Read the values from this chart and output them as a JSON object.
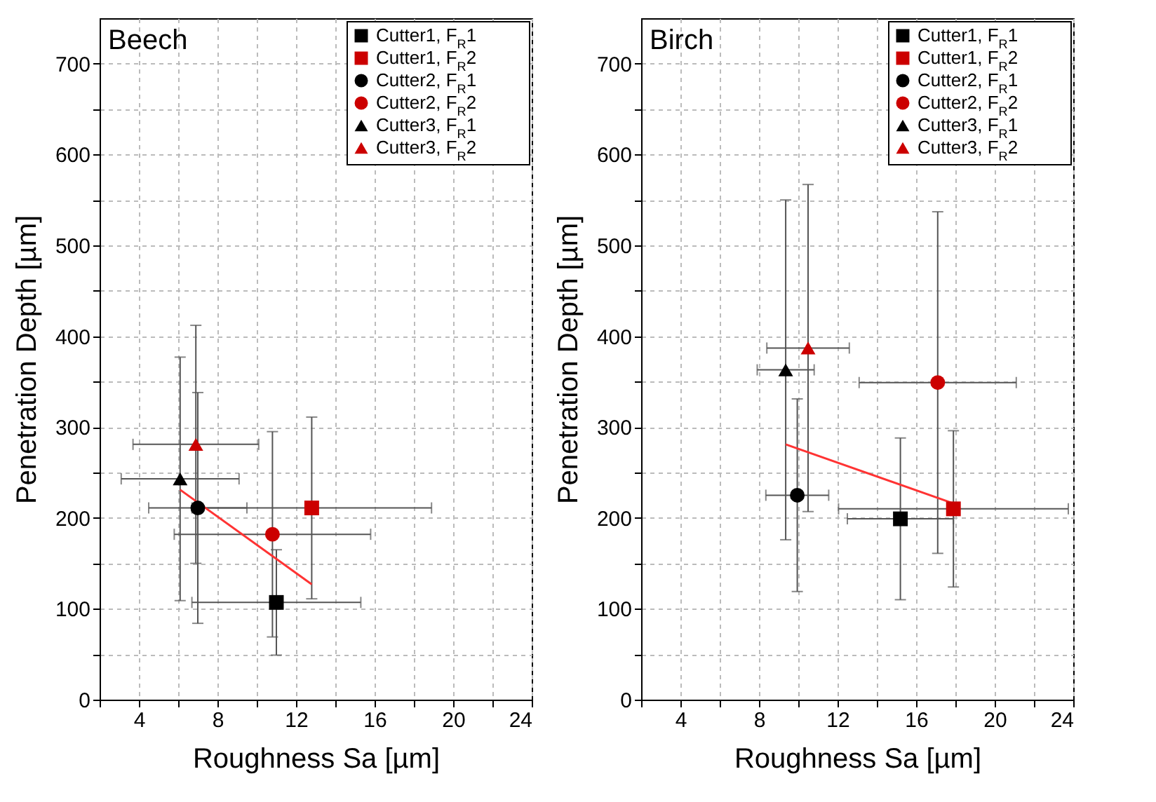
{
  "chart_data": [
    {
      "type": "scatter",
      "title": "Beech",
      "xlabel": "Roughness Sa [µm]",
      "ylabel": "Penetration Depth [µm]",
      "xlim": [
        2,
        24
      ],
      "ylim": [
        0,
        750
      ],
      "xticks": [
        {
          "value": 2,
          "label": null
        },
        4,
        {
          "value": 6,
          "label": null
        },
        8,
        {
          "value": 10,
          "label": null
        },
        12,
        {
          "value": 14,
          "label": null
        },
        16,
        {
          "value": 18,
          "label": null
        },
        20,
        {
          "value": 22,
          "label": null
        },
        24
      ],
      "yticks": [
        0,
        {
          "value": 50,
          "label": null
        },
        100,
        {
          "value": 150,
          "label": null
        },
        200,
        {
          "value": 250,
          "label": null
        },
        300,
        {
          "value": 350,
          "label": null
        },
        400,
        {
          "value": 450,
          "label": null
        },
        500,
        {
          "value": 550,
          "label": null
        },
        600,
        {
          "value": 650,
          "label": null
        },
        700
      ],
      "grid": true,
      "legend": "top right",
      "series": [
        {
          "name": "Cutter1, F$_{R}$1",
          "color": "#000000",
          "marker": "square",
          "x": [
            11.0
          ],
          "values": [
            107
          ],
          "errors": [
            58
          ],
          "xerrors": [
            4.3
          ]
        },
        {
          "name": "Cutter1, F$_{R}$2",
          "color": "#cc0000",
          "marker": "square",
          "x": [
            12.8
          ],
          "values": [
            211
          ],
          "errors": [
            100
          ],
          "xerrors": [
            6.1
          ]
        },
        {
          "name": "Cutter2, F$_{R}$1",
          "color": "#000000",
          "marker": "circle",
          "x": [
            7.0
          ],
          "values": [
            211
          ],
          "errors": [
            127
          ],
          "xerrors": [
            2.5
          ]
        },
        {
          "name": "Cutter2, F$_{R}$2",
          "color": "#cc0000",
          "marker": "circle",
          "x": [
            10.8
          ],
          "values": [
            182
          ],
          "errors": [
            113
          ],
          "xerrors": [
            5.0
          ]
        },
        {
          "name": "Cutter3, F$_{R}$1",
          "color": "#000000",
          "marker": "triangle",
          "x": [
            6.1
          ],
          "values": [
            243
          ],
          "errors": [
            134
          ],
          "xerrors": [
            3.0
          ]
        },
        {
          "name": "Cutter3, F$_{R}$2",
          "color": "#cc0000",
          "marker": "triangle",
          "x": [
            6.9
          ],
          "values": [
            281
          ],
          "errors": [
            131
          ],
          "xerrors": [
            3.2
          ]
        },
        {
          "type": "line",
          "color": "#ff3333",
          "x": [
            6.1,
            12.8
          ],
          "values": [
            231,
            127
          ]
        }
      ]
    },
    {
      "type": "scatter",
      "title": "Birch",
      "xlabel": "Roughness Sa [µm]",
      "ylabel": "Penetration Depth [µm]",
      "xlim": [
        2,
        24
      ],
      "ylim": [
        0,
        750
      ],
      "xticks": [
        {
          "value": 2,
          "label": null
        },
        4,
        {
          "value": 6,
          "label": null
        },
        8,
        {
          "value": 10,
          "label": null
        },
        12,
        {
          "value": 14,
          "label": null
        },
        16,
        {
          "value": 18,
          "label": null
        },
        20,
        {
          "value": 22,
          "label": null
        },
        24
      ],
      "yticks": [
        0,
        {
          "value": 50,
          "label": null
        },
        100,
        {
          "value": 150,
          "label": null
        },
        200,
        {
          "value": 250,
          "label": null
        },
        300,
        {
          "value": 350,
          "label": null
        },
        400,
        {
          "value": 450,
          "label": null
        },
        500,
        {
          "value": 550,
          "label": null
        },
        600,
        {
          "value": 650,
          "label": null
        },
        700
      ],
      "grid": true,
      "legend": "top right",
      "series": [
        {
          "name": "Cutter1, F$_{R}$1",
          "color": "#000000",
          "marker": "square",
          "x": [
            15.2
          ],
          "values": [
            199
          ],
          "errors": [
            89
          ],
          "xerrors": [
            2.7
          ]
        },
        {
          "name": "Cutter1, F$_{R}$2",
          "color": "#cc0000",
          "marker": "square",
          "x": [
            17.9
          ],
          "values": [
            210
          ],
          "errors": [
            86
          ],
          "xerrors": [
            5.85
          ]
        },
        {
          "name": "Cutter2, F$_{R}$1",
          "color": "#000000",
          "marker": "circle",
          "x": [
            9.95
          ],
          "values": [
            225
          ],
          "errors": [
            106
          ],
          "xerrors": [
            1.6
          ]
        },
        {
          "name": "Cutter2, F$_{R}$2",
          "color": "#cc0000",
          "marker": "circle",
          "x": [
            17.1
          ],
          "values": [
            349
          ],
          "errors": [
            188
          ],
          "xerrors": [
            4.0
          ]
        },
        {
          "name": "Cutter3, F$_{R}$1",
          "color": "#000000",
          "marker": "triangle",
          "x": [
            9.36
          ],
          "values": [
            363
          ],
          "errors": [
            187
          ],
          "xerrors": [
            1.45
          ]
        },
        {
          "name": "Cutter3, F$_{R}$2",
          "color": "#cc0000",
          "marker": "triangle",
          "x": [
            10.5
          ],
          "values": [
            387
          ],
          "errors": [
            180
          ],
          "xerrors": [
            2.1
          ]
        },
        {
          "type": "line",
          "color": "#ff3333",
          "x": [
            9.36,
            17.9
          ],
          "values": [
            281,
            216
          ]
        }
      ]
    }
  ]
}
